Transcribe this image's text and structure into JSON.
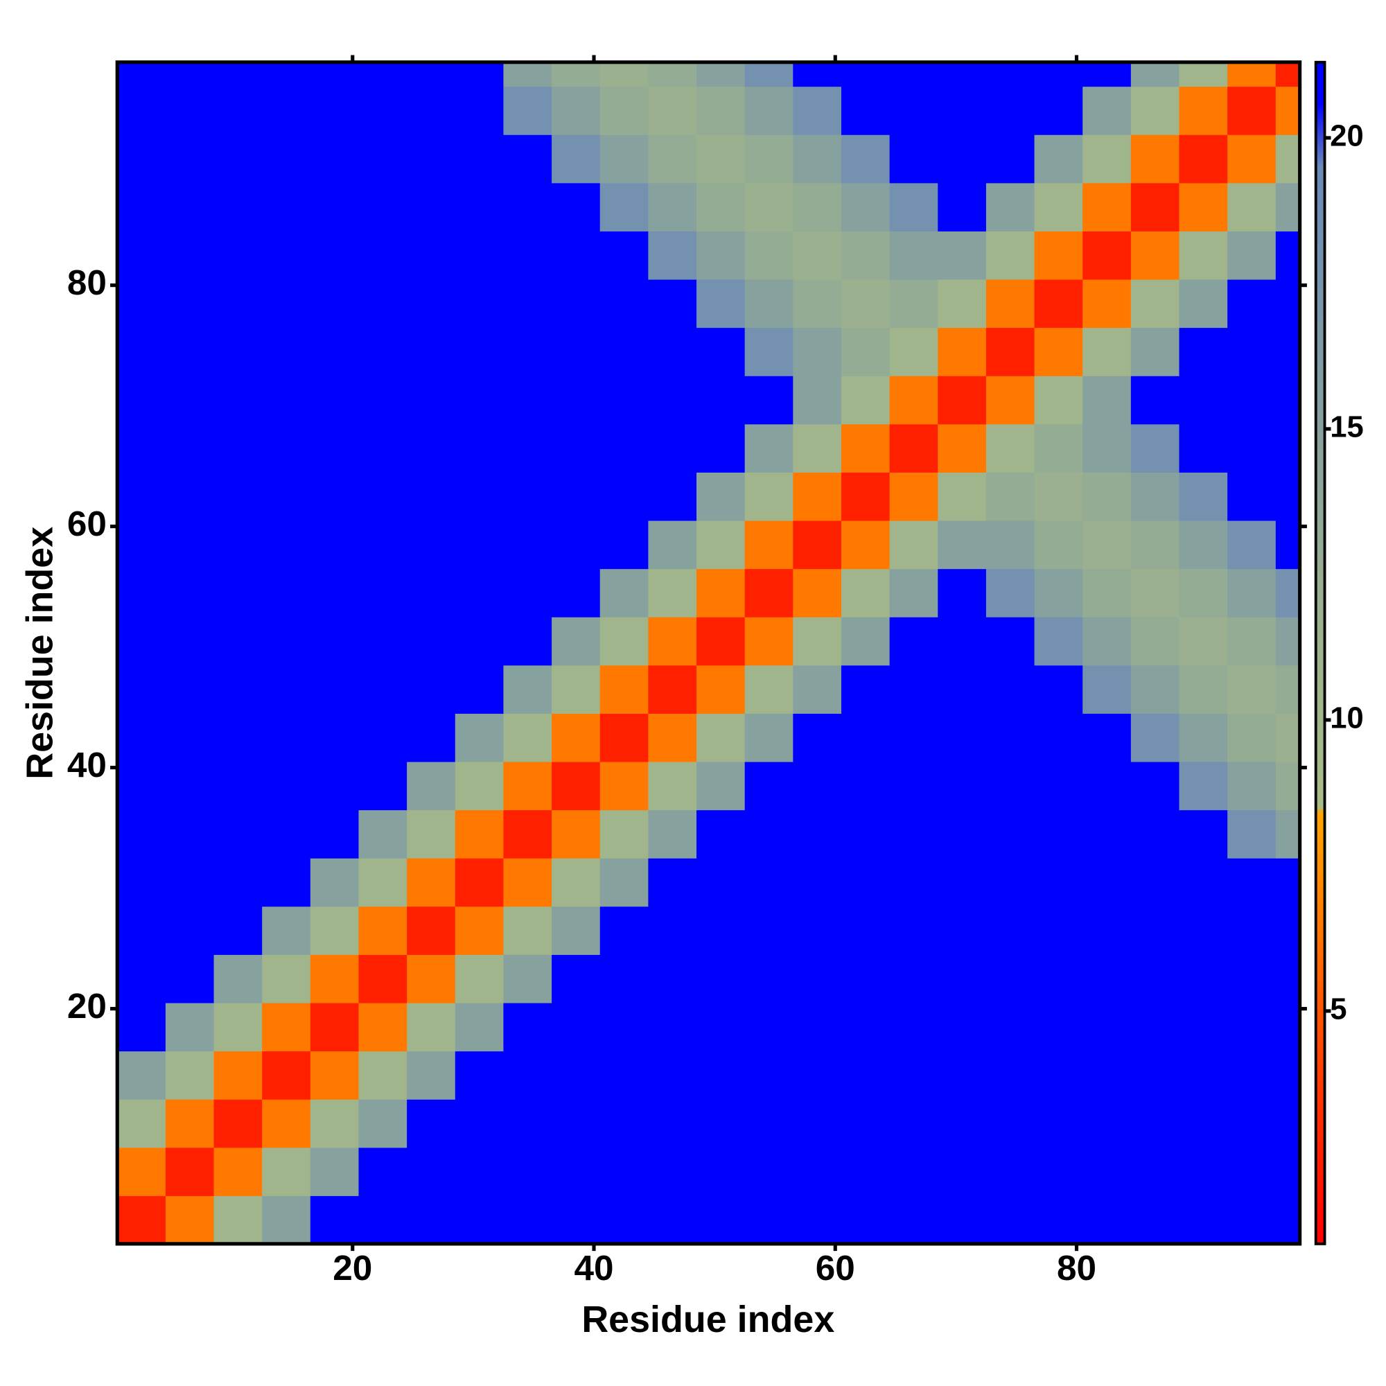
{
  "chart_data": {
    "type": "heatmap",
    "xlabel": "Residue index",
    "ylabel": "Residue index",
    "xbins": [
      0.5,
      4.5,
      8.5,
      12.5,
      16.5,
      20.5,
      24.5,
      28.5,
      32.5,
      36.5,
      40.5,
      44.5,
      48.5,
      52.5,
      56.5,
      60.5,
      64.5,
      68.5,
      72.5,
      76.5,
      80.5,
      84.5,
      88.5,
      92.5,
      96.5,
      98.5
    ],
    "ybins": [
      0.5,
      4.5,
      8.5,
      12.5,
      16.5,
      20.5,
      24.5,
      28.5,
      32.5,
      36.5,
      40.5,
      44.5,
      48.5,
      52.5,
      56.5,
      60.5,
      64.5,
      68.5,
      72.5,
      76.5,
      80.5,
      84.5,
      88.5,
      92.5,
      96.5,
      98.5
    ],
    "xlim": [
      0.5,
      98.5
    ],
    "ylim": [
      0.5,
      98.5
    ],
    "xticks": [
      20,
      40,
      60,
      80
    ],
    "yticks": [
      20,
      40,
      60,
      80
    ],
    "zlim": [
      1,
      21.3
    ],
    "colorbar_ticks": [
      5,
      10,
      15,
      20
    ],
    "colorscale": [
      [
        1,
        "#ff0000"
      ],
      [
        5,
        "#ff5500"
      ],
      [
        8.4,
        "#ffa500"
      ],
      [
        8.5,
        "#a9bb86"
      ],
      [
        12,
        "#9ab08f"
      ],
      [
        19.5,
        "#6a8ab8"
      ],
      [
        20.6,
        "#0000ff"
      ],
      [
        21.3,
        "#0000ff"
      ]
    ],
    "z": [
      [
        2.5,
        6.5,
        10.5,
        15,
        21,
        21,
        21,
        21,
        21,
        21,
        21,
        21,
        21,
        21,
        21,
        21,
        21,
        21,
        21,
        21,
        21,
        21,
        21,
        21,
        21
      ],
      [
        6.5,
        2.5,
        6.5,
        10.5,
        15,
        21,
        21,
        21,
        21,
        21,
        21,
        21,
        21,
        21,
        21,
        21,
        21,
        21,
        21,
        21,
        21,
        21,
        21,
        21,
        21
      ],
      [
        10.5,
        6.5,
        2.5,
        6.5,
        10.5,
        15,
        21,
        21,
        21,
        21,
        21,
        21,
        21,
        21,
        21,
        21,
        21,
        21,
        21,
        21,
        21,
        21,
        21,
        21,
        21
      ],
      [
        15,
        10.5,
        6.5,
        2.5,
        6.5,
        10.5,
        15,
        21,
        21,
        21,
        21,
        21,
        21,
        21,
        21,
        21,
        21,
        21,
        21,
        21,
        21,
        21,
        21,
        21,
        21
      ],
      [
        21,
        15,
        10.5,
        6.5,
        2.5,
        6.5,
        10.5,
        15,
        21,
        21,
        21,
        21,
        21,
        21,
        21,
        21,
        21,
        21,
        21,
        21,
        21,
        21,
        21,
        21,
        21
      ],
      [
        21,
        21,
        15,
        10.5,
        6.5,
        2.5,
        6.5,
        10.5,
        15,
        21,
        21,
        21,
        21,
        21,
        21,
        21,
        21,
        21,
        21,
        21,
        21,
        21,
        21,
        21,
        21
      ],
      [
        21,
        21,
        21,
        15,
        10.5,
        6.5,
        2.5,
        6.5,
        10.5,
        15,
        21,
        21,
        21,
        21,
        21,
        21,
        21,
        21,
        21,
        21,
        21,
        21,
        21,
        21,
        21
      ],
      [
        21,
        21,
        21,
        21,
        15,
        10.5,
        6.5,
        2.5,
        6.5,
        10.5,
        15,
        21,
        21,
        21,
        21,
        21,
        21,
        21,
        21,
        21,
        21,
        21,
        21,
        21,
        21
      ],
      [
        21,
        21,
        21,
        21,
        21,
        15,
        10.5,
        6.5,
        2.5,
        6.5,
        10.5,
        15,
        21,
        21,
        21,
        21,
        21,
        21,
        21,
        21,
        21,
        21,
        21,
        18,
        15
      ],
      [
        21,
        21,
        21,
        21,
        21,
        21,
        15,
        10.5,
        6.5,
        2.5,
        6.5,
        10.5,
        15,
        21,
        21,
        21,
        21,
        21,
        21,
        21,
        21,
        21,
        18,
        15,
        13
      ],
      [
        21,
        21,
        21,
        21,
        21,
        21,
        21,
        15,
        10.5,
        6.5,
        2.5,
        6.5,
        10.5,
        15,
        21,
        21,
        21,
        21,
        21,
        21,
        21,
        18,
        15,
        13,
        12
      ],
      [
        21,
        21,
        21,
        21,
        21,
        21,
        21,
        21,
        15,
        10.5,
        6.5,
        2.5,
        6.5,
        10.5,
        15,
        21,
        21,
        21,
        21,
        21,
        18,
        15,
        13,
        12,
        13
      ],
      [
        21,
        21,
        21,
        21,
        21,
        21,
        21,
        21,
        21,
        15,
        10.5,
        6.5,
        2.5,
        6.5,
        10.5,
        15,
        21,
        21,
        21,
        18,
        15,
        13,
        12,
        13,
        15
      ],
      [
        21,
        21,
        21,
        21,
        21,
        21,
        21,
        21,
        21,
        21,
        15,
        10.5,
        6.5,
        2.5,
        6.5,
        10.5,
        15,
        21,
        18,
        15,
        13,
        12,
        13,
        15,
        18
      ],
      [
        21,
        21,
        21,
        21,
        21,
        21,
        21,
        21,
        21,
        21,
        21,
        15,
        10.5,
        6.5,
        2.5,
        6.5,
        10.5,
        15,
        15,
        13,
        12,
        13,
        15,
        18,
        21
      ],
      [
        21,
        21,
        21,
        21,
        21,
        21,
        21,
        21,
        21,
        21,
        21,
        21,
        15,
        10.5,
        6.5,
        2.5,
        6.5,
        10.5,
        13,
        12,
        13,
        15,
        18,
        21,
        21
      ],
      [
        21,
        21,
        21,
        21,
        21,
        21,
        21,
        21,
        21,
        21,
        21,
        21,
        21,
        15,
        10.5,
        6.5,
        2.5,
        6.5,
        10.5,
        13,
        15,
        18,
        21,
        21,
        21
      ],
      [
        21,
        21,
        21,
        21,
        21,
        21,
        21,
        21,
        21,
        21,
        21,
        21,
        21,
        21,
        15,
        10.5,
        6.5,
        2.5,
        6.5,
        10.5,
        15,
        21,
        21,
        21,
        21
      ],
      [
        21,
        21,
        21,
        21,
        21,
        21,
        21,
        21,
        21,
        21,
        21,
        21,
        21,
        18,
        15,
        13,
        10.5,
        6.5,
        2.5,
        6.5,
        10.5,
        15,
        21,
        21,
        21
      ],
      [
        21,
        21,
        21,
        21,
        21,
        21,
        21,
        21,
        21,
        21,
        21,
        21,
        18,
        15,
        13,
        12,
        13,
        10.5,
        6.5,
        2.5,
        6.5,
        10.5,
        15,
        21,
        21
      ],
      [
        21,
        21,
        21,
        21,
        21,
        21,
        21,
        21,
        21,
        21,
        21,
        18,
        15,
        13,
        12,
        13,
        15,
        15,
        10.5,
        6.5,
        2.5,
        6.5,
        10.5,
        15,
        21
      ],
      [
        21,
        21,
        21,
        21,
        21,
        21,
        21,
        21,
        21,
        21,
        18,
        15,
        13,
        12,
        13,
        15,
        18,
        21,
        15,
        10.5,
        6.5,
        2.5,
        6.5,
        10.5,
        15
      ],
      [
        21,
        21,
        21,
        21,
        21,
        21,
        21,
        21,
        21,
        18,
        15,
        13,
        12,
        13,
        15,
        18,
        21,
        21,
        21,
        15,
        10.5,
        6.5,
        2.5,
        6.5,
        10.5
      ],
      [
        21,
        21,
        21,
        21,
        21,
        21,
        21,
        21,
        18,
        15,
        13,
        12,
        13,
        15,
        18,
        21,
        21,
        21,
        21,
        21,
        15,
        10.5,
        6.5,
        2.5,
        6.5
      ],
      [
        21,
        21,
        21,
        21,
        21,
        21,
        21,
        21,
        15,
        13,
        12,
        13,
        15,
        18,
        21,
        21,
        21,
        21,
        21,
        21,
        21,
        15,
        10.5,
        6.5,
        2.5
      ]
    ]
  }
}
